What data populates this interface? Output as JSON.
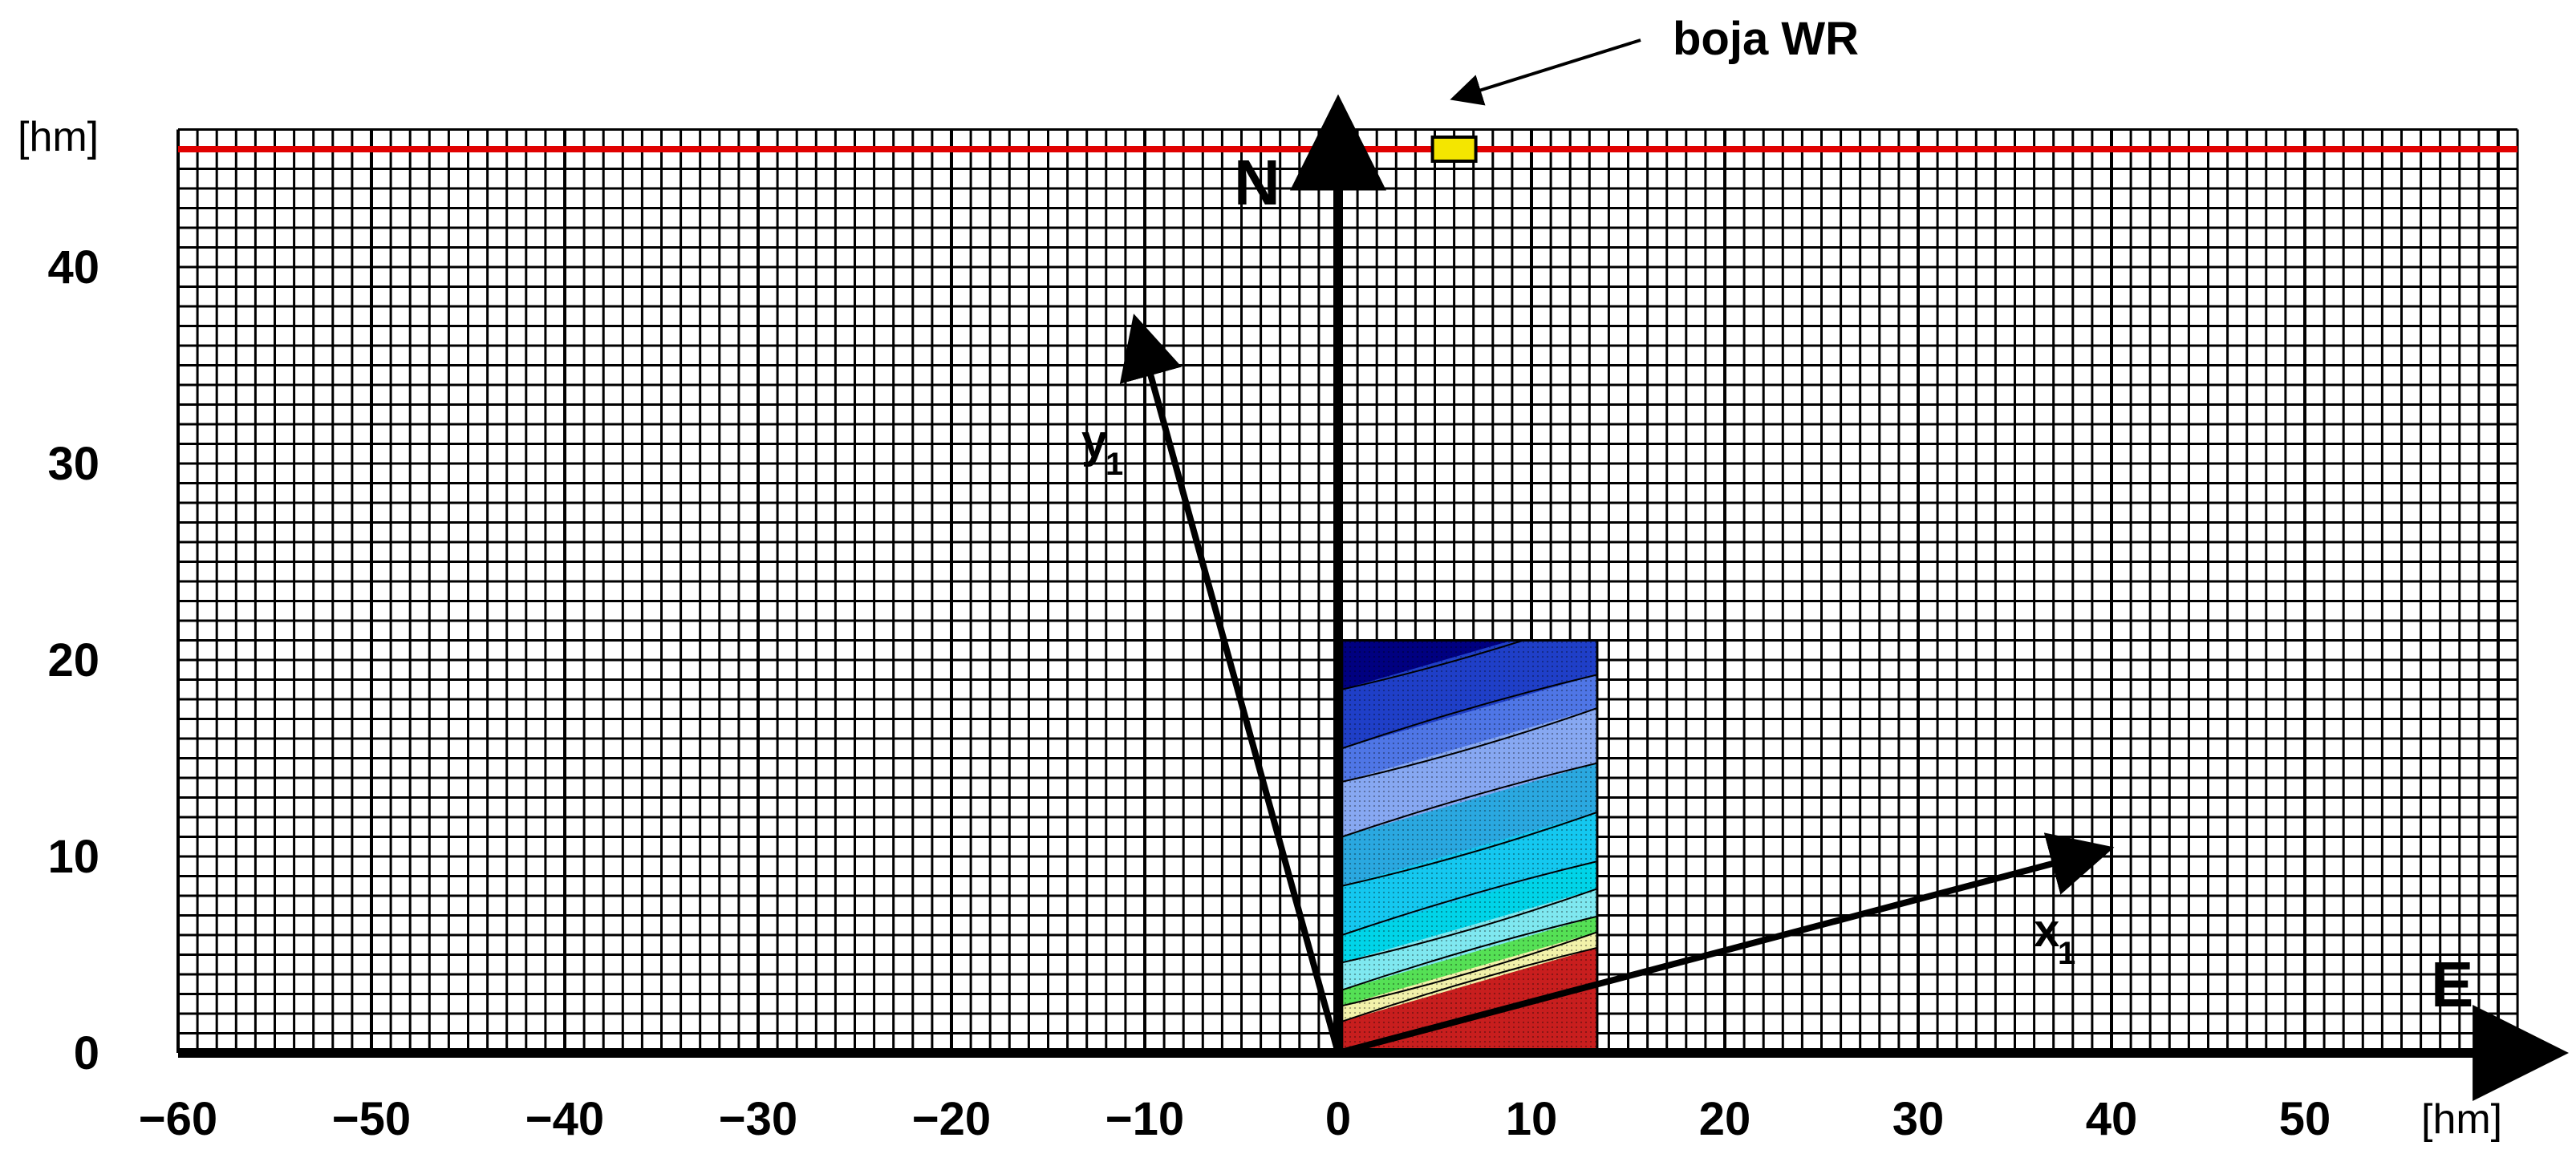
{
  "units": {
    "y": "[hm]",
    "x": "[hm]"
  },
  "y_ticks": [
    {
      "value": 0,
      "label": "0"
    },
    {
      "value": 10,
      "label": "10"
    },
    {
      "value": 20,
      "label": "20"
    },
    {
      "value": 30,
      "label": "30"
    },
    {
      "value": 40,
      "label": "40"
    }
  ],
  "x_ticks": [
    {
      "value": -60,
      "label": "−60"
    },
    {
      "value": -50,
      "label": "−50"
    },
    {
      "value": -40,
      "label": "−40"
    },
    {
      "value": -30,
      "label": "−30"
    },
    {
      "value": -20,
      "label": "−20"
    },
    {
      "value": -10,
      "label": "−10"
    },
    {
      "value": 0,
      "label": "0"
    },
    {
      "value": 10,
      "label": "10"
    },
    {
      "value": 20,
      "label": "20"
    },
    {
      "value": 30,
      "label": "30"
    },
    {
      "value": 40,
      "label": "40"
    },
    {
      "value": 50,
      "label": "50"
    }
  ],
  "grid": {
    "x_range": [
      -60,
      61
    ],
    "y_range": [
      0,
      47
    ],
    "x_step": 1,
    "y_step": 1
  },
  "axes": {
    "north_label": "N",
    "east_label": "E"
  },
  "top_line": {
    "y": 46,
    "color": "#e00000"
  },
  "marker": {
    "label": "boja WR",
    "x": 6,
    "y": 46,
    "color": "#f4e600"
  },
  "vectors": [
    {
      "name": "y1",
      "label": "y",
      "subscript": "1",
      "from": [
        0,
        0
      ],
      "to": [
        -10.4,
        37
      ]
    },
    {
      "name": "x1",
      "label": "x",
      "subscript": "1",
      "from": [
        0,
        0
      ],
      "to": [
        39.5,
        10.3
      ]
    }
  ],
  "section_colors": [
    "#000080",
    "#1f3fc8",
    "#4f76e6",
    "#87a8f2",
    "#2aa8e0",
    "#14c8f0",
    "#00d4e8",
    "#7fe8f0",
    "#55e055",
    "#f2f2aa",
    "#c81e1e"
  ]
}
